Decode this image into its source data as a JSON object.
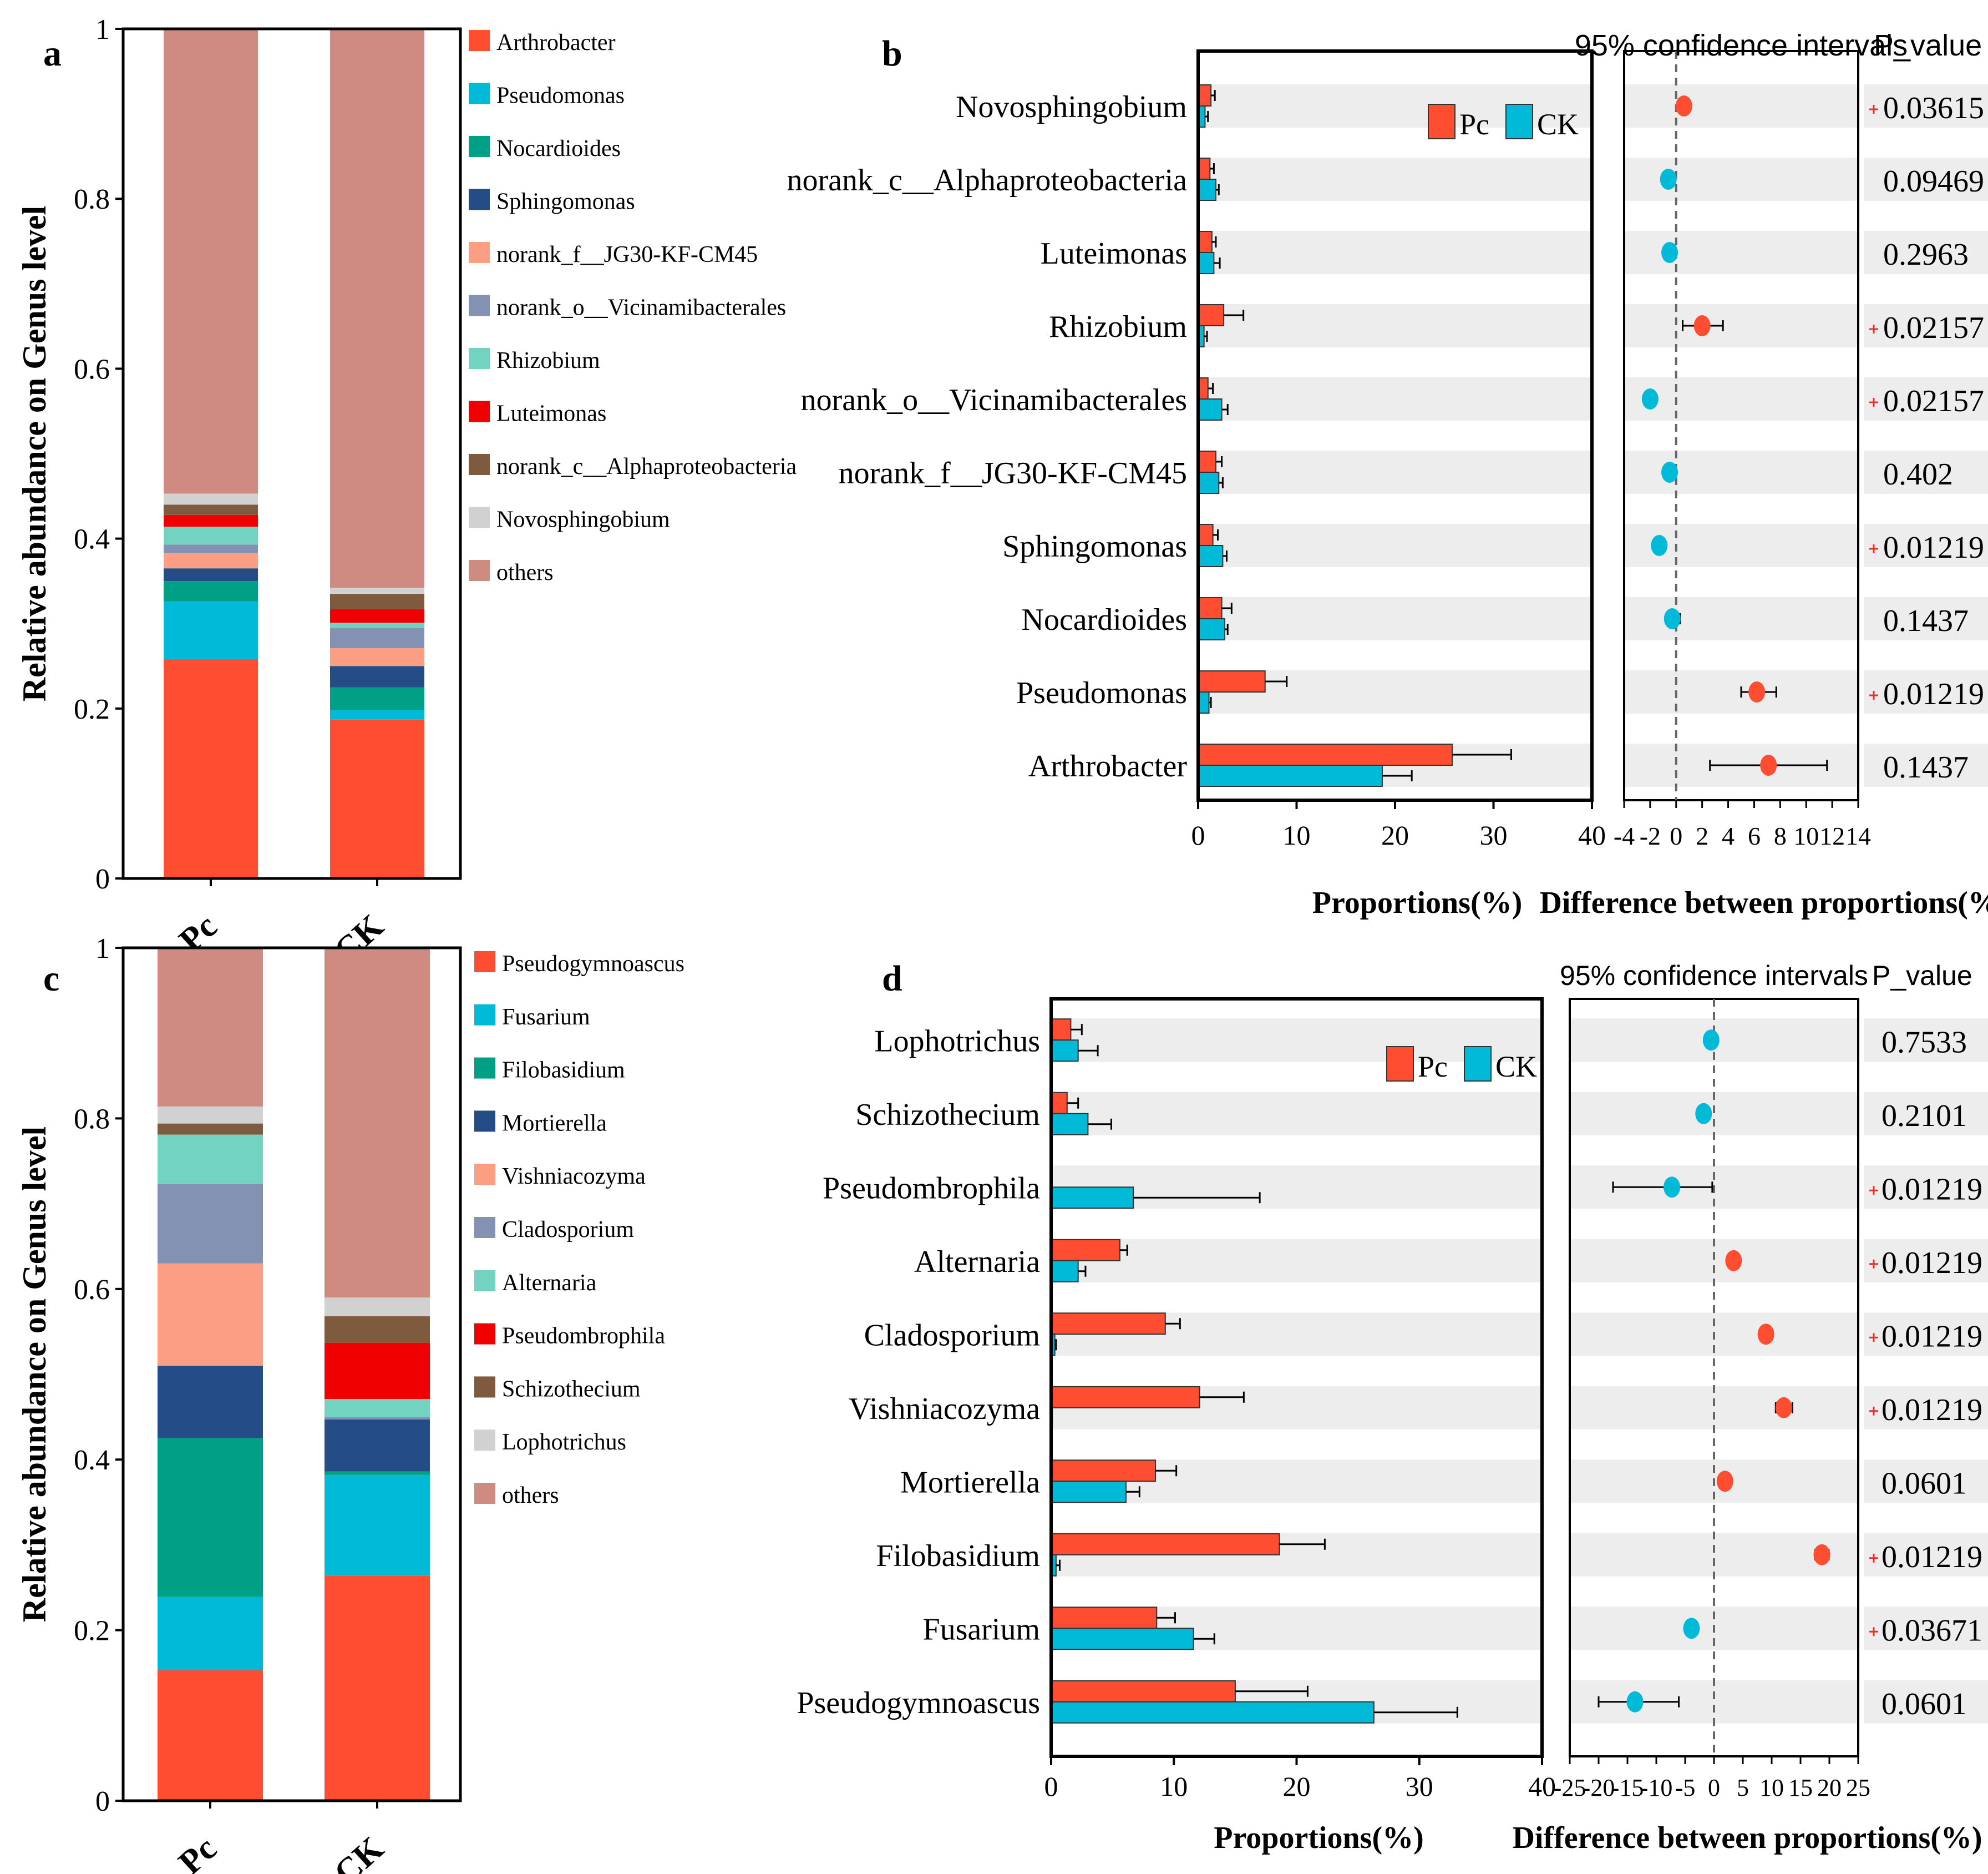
{
  "colors": {
    "pc": "#FF4D32",
    "ck": "#00BAD7",
    "row_band": "#EDEDED",
    "axis": "#000000",
    "zero_line": "#666666",
    "sig_star": "#E4332A"
  },
  "chart_data": [
    {
      "panel": "a",
      "type": "bar",
      "stacked": true,
      "panel_label": "a",
      "ylabel": "Relative abundance on Genus level",
      "ylim": [
        0,
        1
      ],
      "yticks": [
        "0",
        "0.2",
        "0.4",
        "0.6",
        "0.8",
        "1"
      ],
      "categories": [
        "Pc",
        "CK"
      ],
      "legend_position": "right",
      "series": [
        {
          "name": "Arthrobacter",
          "color": "#FF4D32",
          "values": [
            0.258,
            0.187
          ]
        },
        {
          "name": "Pseudomonas",
          "color": "#00BAD7",
          "values": [
            0.068,
            0.011
          ]
        },
        {
          "name": "Nocardioides",
          "color": "#00A086",
          "values": [
            0.024,
            0.027
          ]
        },
        {
          "name": "Sphingomonas",
          "color": "#244C86",
          "values": [
            0.015,
            0.025
          ]
        },
        {
          "name": "norank_f__JG30-KF-CM45",
          "color": "#FB9E84",
          "values": [
            0.018,
            0.021
          ]
        },
        {
          "name": "norank_o__Vicinamibacterales",
          "color": "#8392B3",
          "values": [
            0.01,
            0.024
          ]
        },
        {
          "name": "Rhizobium",
          "color": "#72D3C0",
          "values": [
            0.021,
            0.006
          ]
        },
        {
          "name": "Luteimonas",
          "color": "#F00000",
          "values": [
            0.014,
            0.016
          ]
        },
        {
          "name": "norank_c__Alphaproteobacteria",
          "color": "#7E5B3F",
          "values": [
            0.012,
            0.018
          ]
        },
        {
          "name": "Novosphingobium",
          "color": "#D1D1D1",
          "values": [
            0.013,
            0.007
          ]
        },
        {
          "name": "others",
          "color": "#CF8A82",
          "values": [
            0.547,
            0.658
          ]
        }
      ]
    },
    {
      "panel": "b",
      "type": "bar",
      "orientation": "horizontal",
      "panel_label": "b",
      "xlabel": "Proportions(%)",
      "xlim": [
        0,
        40
      ],
      "xticks": [
        "0",
        "10",
        "20",
        "30",
        "40"
      ],
      "legend": [
        "Pc",
        "CK"
      ],
      "legend_position": "top-right",
      "categories": [
        "Novosphingobium",
        "norank_c__Alphaproteobacteria",
        "Luteimonas",
        "Rhizobium",
        "norank_o__Vicinamibacterales",
        "norank_f__JG30-KF-CM45",
        "Sphingomonas",
        "Nocardioides",
        "Pseudomonas",
        "Arthrobacter"
      ],
      "series": [
        {
          "name": "Pc",
          "values": [
            1.3,
            1.2,
            1.4,
            2.6,
            1.0,
            1.8,
            1.5,
            2.4,
            6.8,
            25.8
          ],
          "errors": [
            0.4,
            0.4,
            0.4,
            2.0,
            0.5,
            0.6,
            0.5,
            1.0,
            2.2,
            6.0
          ]
        },
        {
          "name": "CK",
          "values": [
            0.7,
            1.8,
            1.6,
            0.6,
            2.4,
            2.1,
            2.5,
            2.7,
            1.1,
            18.7
          ],
          "errors": [
            0.3,
            0.3,
            0.6,
            0.3,
            0.6,
            0.4,
            0.4,
            0.3,
            0.2,
            3.0
          ]
        }
      ],
      "ci_title": "95% confidence intervals",
      "ci_xlabel": "Difference between proportions(%)",
      "ci_xlim": [
        -4,
        14
      ],
      "ci_xticks": [
        "-4",
        "-2",
        "0",
        "2",
        "4",
        "6",
        "8",
        "10",
        "12",
        "14"
      ],
      "differences": [
        0.6,
        -0.6,
        -0.5,
        2.0,
        -2.0,
        -0.5,
        -1.3,
        -0.3,
        6.2,
        7.1
      ],
      "diff_low": [
        0.6,
        -0.6,
        -0.5,
        0.5,
        -2.0,
        -0.5,
        -1.3,
        -0.3,
        5.0,
        2.6
      ],
      "diff_high": [
        0.6,
        -0.6,
        -0.5,
        3.6,
        -2.0,
        -0.5,
        -1.3,
        0.3,
        7.7,
        11.6
      ],
      "higher_group": [
        "Pc",
        "CK",
        "CK",
        "Pc",
        "CK",
        "CK",
        "CK",
        "CK",
        "Pc",
        "Pc"
      ],
      "pvalue_title": "P_value",
      "p_values": [
        "0.03615",
        "0.09469",
        "0.2963",
        "0.02157",
        "0.02157",
        "0.402",
        "0.01219",
        "0.1437",
        "0.01219",
        "0.1437"
      ],
      "significant": [
        true,
        false,
        false,
        true,
        true,
        false,
        true,
        false,
        true,
        false
      ]
    },
    {
      "panel": "c",
      "type": "bar",
      "stacked": true,
      "panel_label": "c",
      "ylabel": "Relative abundance on Genus level",
      "ylim": [
        0,
        1
      ],
      "yticks": [
        "0",
        "0.2",
        "0.4",
        "0.6",
        "0.8",
        "1"
      ],
      "categories": [
        "Pc",
        "CK"
      ],
      "legend_position": "right",
      "series": [
        {
          "name": "Pseudogymnoascus",
          "color": "#FF4D32",
          "values": [
            0.153,
            0.264
          ]
        },
        {
          "name": "Fusarium",
          "color": "#00BAD7",
          "values": [
            0.086,
            0.118
          ]
        },
        {
          "name": "Filobasidium",
          "color": "#00A086",
          "values": [
            0.186,
            0.004
          ]
        },
        {
          "name": "Mortierella",
          "color": "#244C86",
          "values": [
            0.085,
            0.061
          ]
        },
        {
          "name": "Vishniacozyma",
          "color": "#FB9E84",
          "values": [
            0.12,
            0.0
          ]
        },
        {
          "name": "Cladosporium",
          "color": "#8392B3",
          "values": [
            0.093,
            0.003
          ]
        },
        {
          "name": "Alternaria",
          "color": "#72D3C0",
          "values": [
            0.058,
            0.021
          ]
        },
        {
          "name": "Pseudombrophila",
          "color": "#F00000",
          "values": [
            0.0,
            0.066
          ]
        },
        {
          "name": "Schizothecium",
          "color": "#7E5B3F",
          "values": [
            0.013,
            0.031
          ]
        },
        {
          "name": "Lophotrichus",
          "color": "#D1D1D1",
          "values": [
            0.02,
            0.022
          ]
        },
        {
          "name": "others",
          "color": "#CF8A82",
          "values": [
            0.186,
            0.41
          ]
        }
      ]
    },
    {
      "panel": "d",
      "type": "bar",
      "orientation": "horizontal",
      "panel_label": "d",
      "xlabel": "Proportions(%)",
      "xlim": [
        0,
        40
      ],
      "xticks": [
        "0",
        "10",
        "20",
        "30",
        "40"
      ],
      "legend": [
        "Pc",
        "CK"
      ],
      "legend_position": "top-right",
      "categories": [
        "Lophotrichus",
        "Schizothecium",
        "Pseudombrophila",
        "Alternaria",
        "Cladosporium",
        "Vishniacozyma",
        "Mortierella",
        "Filobasidium",
        "Fusarium",
        "Pseudogymnoascus"
      ],
      "series": [
        {
          "name": "Pc",
          "values": [
            1.6,
            1.3,
            0.0,
            5.6,
            9.3,
            12.1,
            8.5,
            18.6,
            8.6,
            15.0
          ],
          "errors": [
            0.9,
            0.9,
            0.0,
            0.6,
            1.2,
            3.6,
            1.7,
            3.7,
            1.5,
            5.9
          ]
        },
        {
          "name": "CK",
          "values": [
            2.2,
            3.0,
            6.7,
            2.2,
            0.3,
            0.1,
            6.1,
            0.4,
            11.6,
            26.3
          ],
          "errors": [
            1.6,
            1.9,
            10.3,
            0.6,
            0.1,
            0.0,
            1.1,
            0.3,
            1.7,
            6.8
          ]
        }
      ],
      "ci_title": "95% confidence intervals",
      "ci_xlabel": "Difference between proportions(%)",
      "ci_xlim": [
        -25,
        25
      ],
      "ci_xticks": [
        "-25",
        "-20",
        "-15",
        "-10",
        "-5",
        "0",
        "5",
        "10",
        "15",
        "20",
        "25"
      ],
      "differences": [
        -0.5,
        -1.8,
        -7.3,
        3.4,
        9.0,
        12.1,
        1.9,
        18.7,
        -3.9,
        -13.7
      ],
      "diff_low": [
        -0.5,
        -2.6,
        -17.5,
        3.4,
        9.0,
        10.7,
        1.3,
        17.5,
        -4.8,
        -20.0
      ],
      "diff_high": [
        -0.5,
        -1.0,
        -0.3,
        3.4,
        9.0,
        13.6,
        3.0,
        19.9,
        -3.0,
        -6.1
      ],
      "higher_group": [
        "CK",
        "CK",
        "CK",
        "Pc",
        "Pc",
        "Pc",
        "Pc",
        "Pc",
        "CK",
        "CK"
      ],
      "pvalue_title": "P_value",
      "p_values": [
        "0.7533",
        "0.2101",
        "0.01219",
        "0.01219",
        "0.01219",
        "0.01219",
        "0.0601",
        "0.01219",
        "0.03671",
        "0.0601"
      ],
      "significant": [
        false,
        false,
        true,
        true,
        true,
        true,
        false,
        true,
        true,
        false
      ]
    }
  ]
}
